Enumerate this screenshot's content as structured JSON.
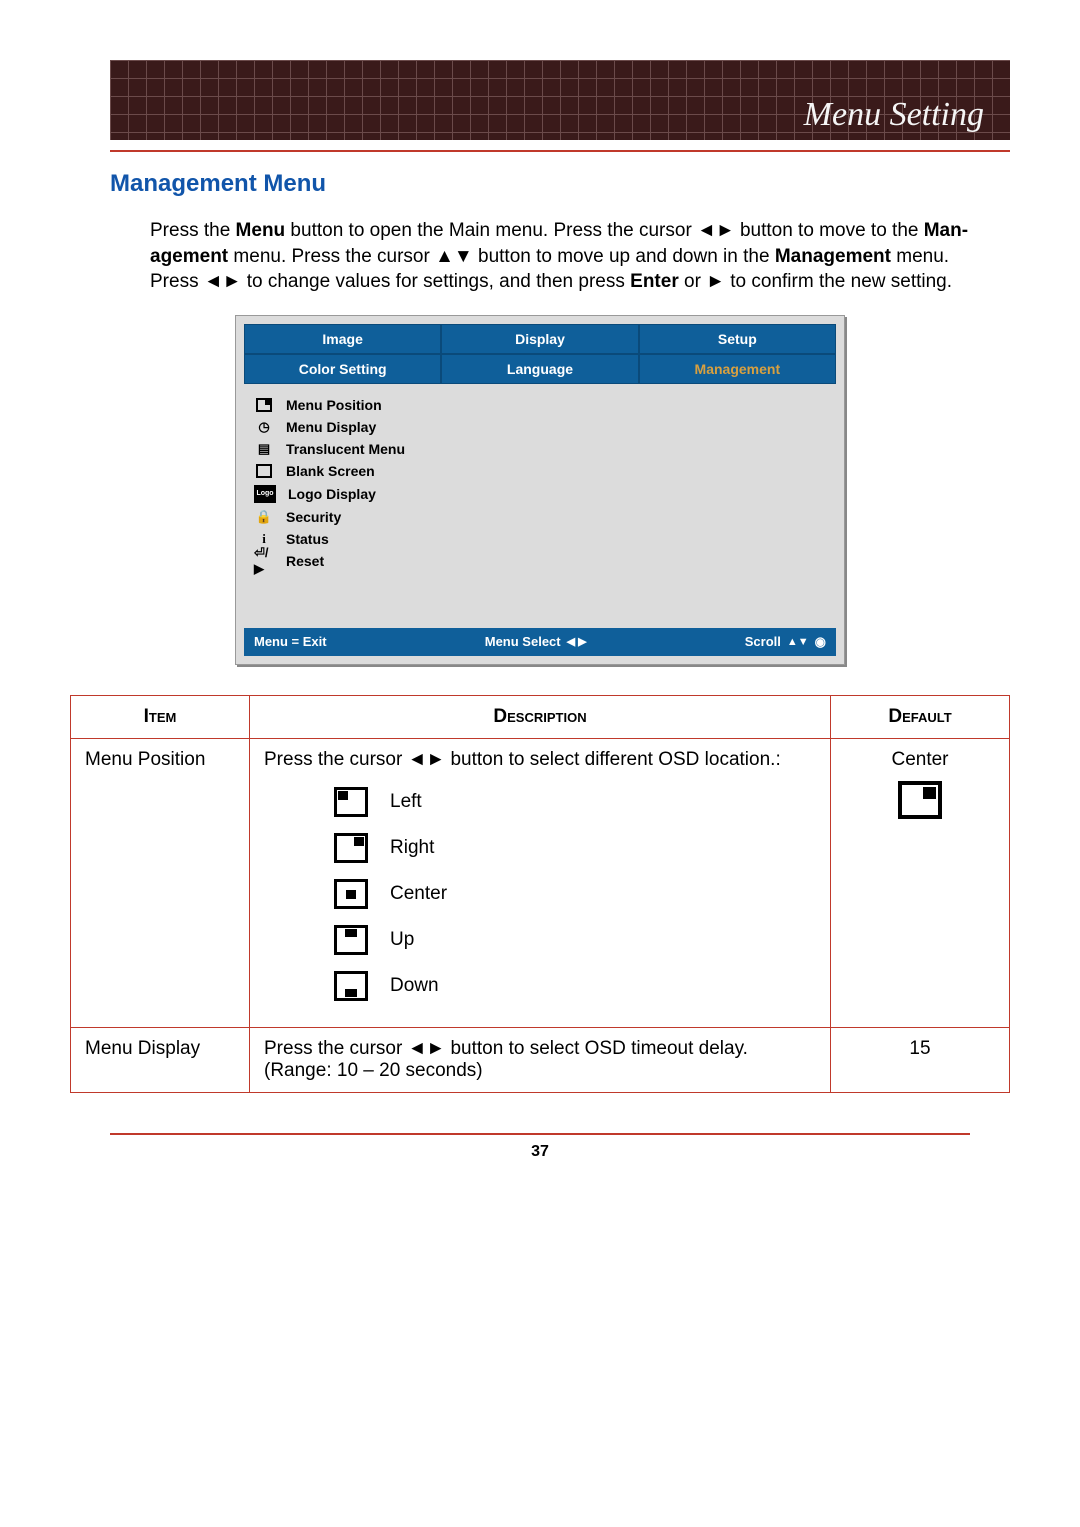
{
  "header": {
    "title": "Menu Setting"
  },
  "section_title": "Management Menu",
  "intro": {
    "p1a": "Press the ",
    "menu_b": "Menu",
    "p1b": " button to open the Main menu. Press the cursor ◄► button to move to the ",
    "man_b": "Man-",
    "p2a": "agement",
    "p2b": " menu. Press the cursor ▲▼ button to move up and down in the ",
    "man2_b": "Management",
    "p2c": " menu. Press ◄► to change values for settings, and then press ",
    "enter_b": "Enter",
    "p2d": " or ► to confirm the new setting."
  },
  "osd": {
    "tabs_row1": [
      "Image",
      "Display",
      "Setup"
    ],
    "tabs_row2": [
      "Color Setting",
      "Language",
      "Management"
    ],
    "items": [
      {
        "icon": "pos",
        "label": "Menu Position"
      },
      {
        "icon": "clock",
        "label": "Menu Display"
      },
      {
        "icon": "doc",
        "label": "Translucent Menu"
      },
      {
        "icon": "blank",
        "label": "Blank Screen"
      },
      {
        "icon": "logo",
        "label": "Logo Display"
      },
      {
        "icon": "lock",
        "label": "Security"
      },
      {
        "icon": "info",
        "label": "Status"
      },
      {
        "icon": "reset",
        "label": "Reset"
      }
    ],
    "footer": {
      "exit": "Menu = Exit",
      "select": "Menu Select",
      "scroll": "Scroll"
    }
  },
  "table": {
    "headers": {
      "item": "Item",
      "desc": "Description",
      "default": "Default"
    },
    "row1": {
      "item": "Menu Position",
      "desc_lead": "Press the cursor ◄► button to select different OSD location.:",
      "positions": [
        {
          "key": "left",
          "label": "Left"
        },
        {
          "key": "right",
          "label": "Right"
        },
        {
          "key": "center",
          "label": "Center"
        },
        {
          "key": "up",
          "label": "Up"
        },
        {
          "key": "down",
          "label": "Down"
        }
      ],
      "default": "Center"
    },
    "row2": {
      "item": "Menu Display",
      "desc": "Press the cursor ◄► button to select OSD timeout delay. (Range: 10 – 20 seconds)",
      "default": "15"
    }
  },
  "page_number": "37",
  "colors": {
    "accent_red": "#c0392b",
    "heading_blue": "#1155aa",
    "osd_blue": "#0f5f9a",
    "osd_grey": "#dcdcdc",
    "osd_highlight": "#d8a040",
    "header_dark": "#3a1a1a"
  }
}
